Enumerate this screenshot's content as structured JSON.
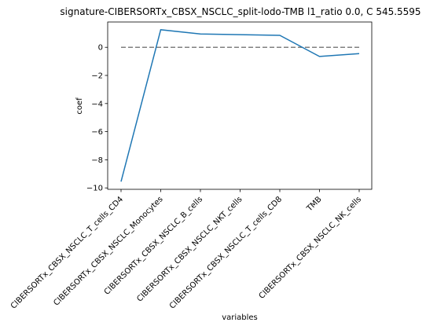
{
  "chart_data": {
    "type": "line",
    "title": "signature-CIBERSORTx_CBSX_NSCLC_split-lodo-TMB l1_ratio 0.0, C 545.5595",
    "xlabel": "variables",
    "ylabel": "coef",
    "categories": [
      "CIBERSORTx_CBSX_NSCLC_T_cells_CD4",
      "CIBERSORTx_CBSX_NSCLC_Monocytes",
      "CIBERSORTx_CBSX_NSCLC_B_cells",
      "CIBERSORTx_CBSX_NSCLC_NKT_cells",
      "CIBERSORTx_CBSX_NSCLC_T_cells_CD8",
      "TMB",
      "CIBERSORTx_CBSX_NSCLC_NK_cells"
    ],
    "values": [
      -9.55,
      1.25,
      0.95,
      0.9,
      0.85,
      -0.65,
      -0.45
    ],
    "reference_line": 0,
    "yticks": [
      0,
      -2,
      -4,
      -6,
      -8,
      -10
    ],
    "ylim": [
      -10.1,
      1.8
    ],
    "grid": false,
    "legend": "none",
    "colors": {
      "line": "#1f77b4",
      "reference": "#808080",
      "axes": "#000000"
    }
  }
}
